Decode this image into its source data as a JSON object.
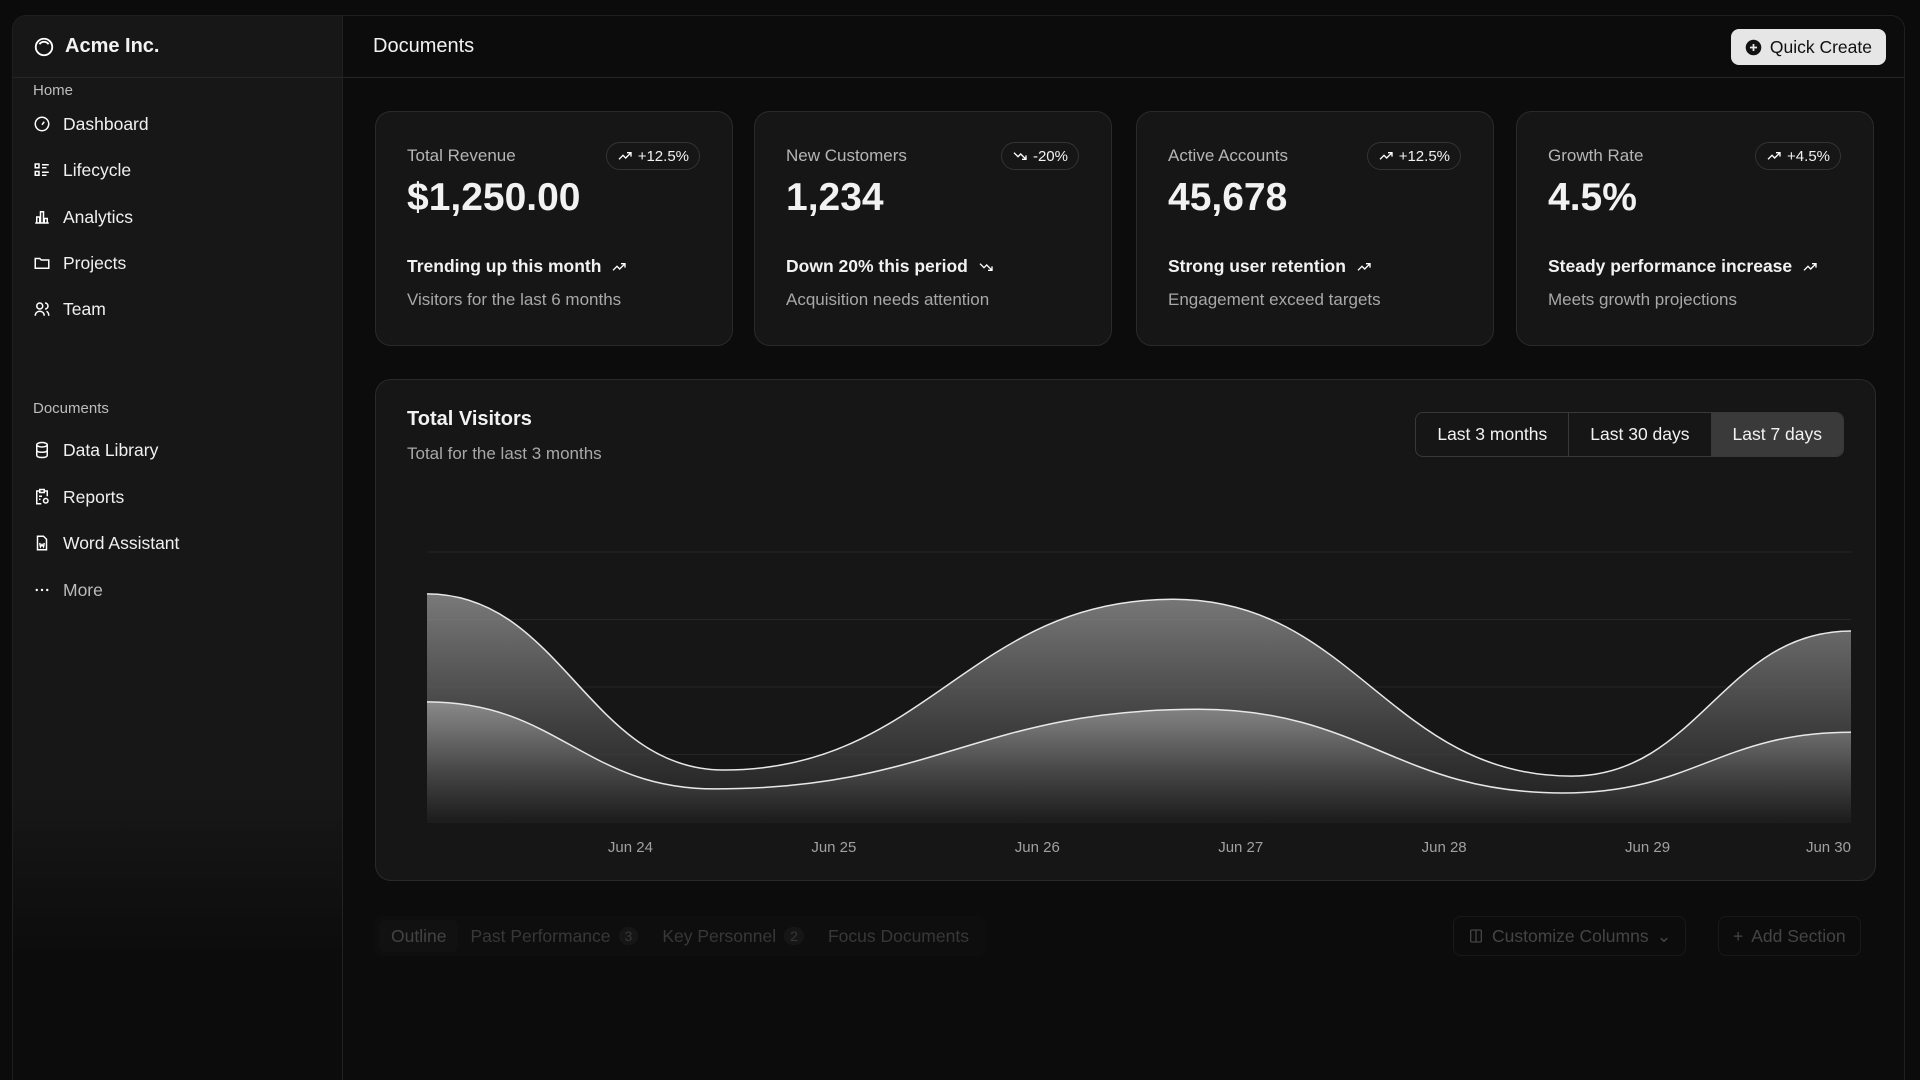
{
  "sidebar": {
    "brand": "Acme Inc.",
    "sections": [
      {
        "title": "Home",
        "items": [
          {
            "label": "Dashboard",
            "icon": "gauge-icon"
          },
          {
            "label": "Lifecycle",
            "icon": "list-details-icon"
          },
          {
            "label": "Analytics",
            "icon": "bar-chart-icon"
          },
          {
            "label": "Projects",
            "icon": "folder-icon"
          },
          {
            "label": "Team",
            "icon": "users-icon"
          }
        ]
      },
      {
        "title": "Documents",
        "items": [
          {
            "label": "Data Library",
            "icon": "database-icon"
          },
          {
            "label": "Reports",
            "icon": "report-icon"
          },
          {
            "label": "Word Assistant",
            "icon": "file-word-icon"
          },
          {
            "label": "More",
            "icon": "dots-icon"
          }
        ]
      }
    ]
  },
  "header": {
    "title": "Documents",
    "quick_create": "Quick Create"
  },
  "cards": [
    {
      "label": "Total Revenue",
      "badge": "+12.5%",
      "trend": "up",
      "value": "$1,250.00",
      "footer": "Trending up this month",
      "sub": "Visitors for the last 6 months"
    },
    {
      "label": "New Customers",
      "badge": "-20%",
      "trend": "down",
      "value": "1,234",
      "footer": "Down 20% this period",
      "sub": "Acquisition needs attention"
    },
    {
      "label": "Active Accounts",
      "badge": "+12.5%",
      "trend": "up",
      "value": "45,678",
      "footer": "Strong user retention",
      "sub": "Engagement exceed targets"
    },
    {
      "label": "Growth Rate",
      "badge": "+4.5%",
      "trend": "up",
      "value": "4.5%",
      "footer": "Steady performance increase",
      "sub": "Meets growth projections"
    }
  ],
  "visitors": {
    "title": "Total Visitors",
    "subtitle": "Total for the last 3 months",
    "ranges": [
      "Last 3 months",
      "Last 30 days",
      "Last 7 days"
    ],
    "selected_range": "Last 7 days"
  },
  "chart_data": {
    "type": "area",
    "x_ticks": [
      "Jun 24",
      "Jun 25",
      "Jun 26",
      "Jun 27",
      "Jun 28",
      "Jun 29",
      "Jun 30"
    ],
    "xlim": [
      "Jun 23 00:00",
      "Jun 30 00:00"
    ],
    "ylim": [
      0,
      400
    ],
    "grid": true,
    "series": [
      {
        "points": [
          [
            "Jun 23 00:00",
            338
          ],
          [
            "Jun 24 11:00",
            77
          ],
          [
            "Jun 26 16:00",
            330
          ],
          [
            "Jun 28 15:00",
            68
          ],
          [
            "Jun 30 00:00",
            283
          ]
        ]
      },
      {
        "points": [
          [
            "Jun 23 00:00",
            178
          ],
          [
            "Jun 24 10:00",
            49
          ],
          [
            "Jun 26 19:00",
            167
          ],
          [
            "Jun 28 14:00",
            43
          ],
          [
            "Jun 30 00:00",
            133
          ]
        ]
      }
    ]
  },
  "tabs": [
    {
      "label": "Outline"
    },
    {
      "label": "Past Performance",
      "count": "3"
    },
    {
      "label": "Key Personnel",
      "count": "2"
    },
    {
      "label": "Focus Documents"
    }
  ],
  "actions": {
    "customize": "Customize Columns",
    "add_section": "Add Section"
  }
}
